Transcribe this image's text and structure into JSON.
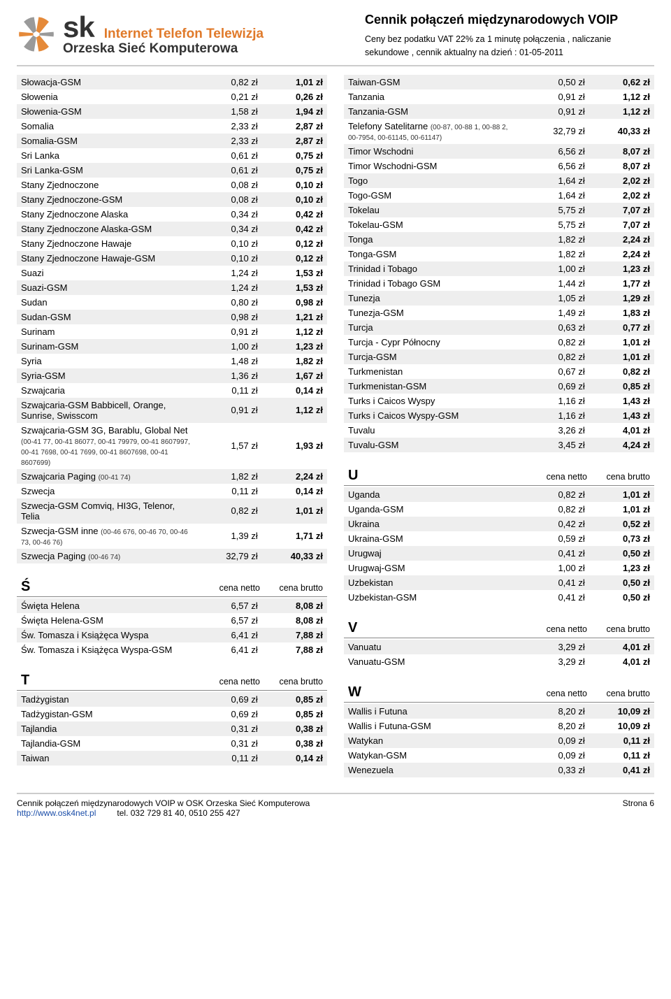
{
  "header": {
    "brand_sk": "sk",
    "brand_tag1": "Internet  Telefon  Telewizja",
    "brand_tag2": "Orzeska Sieć Komputerowa",
    "title": "Cennik połączeń międzynarodowych VOIP",
    "subtitle": "Ceny bez podatku VAT 22% za 1 minutę  połączenia , naliczanie sekundowe , cennik aktualny na dzień : 01-05-2011",
    "logo_orange": "#e58a3a",
    "logo_grey": "#9a9a9a"
  },
  "labels": {
    "cena_netto": "cena netto",
    "cena_brutto": "cena brutto"
  },
  "left_main": [
    {
      "name": "Słowacja-GSM",
      "net": "0,82 zł",
      "gross": "1,01 zł"
    },
    {
      "name": "Słowenia",
      "net": "0,21 zł",
      "gross": "0,26 zł"
    },
    {
      "name": "Słowenia-GSM",
      "net": "1,58 zł",
      "gross": "1,94 zł"
    },
    {
      "name": "Somalia",
      "net": "2,33 zł",
      "gross": "2,87 zł"
    },
    {
      "name": "Somalia-GSM",
      "net": "2,33 zł",
      "gross": "2,87 zł"
    },
    {
      "name": "Sri Lanka",
      "net": "0,61 zł",
      "gross": "0,75 zł"
    },
    {
      "name": "Sri Lanka-GSM",
      "net": "0,61 zł",
      "gross": "0,75 zł"
    },
    {
      "name": "Stany Zjednoczone",
      "net": "0,08 zł",
      "gross": "0,10 zł"
    },
    {
      "name": "Stany Zjednoczone-GSM",
      "net": "0,08 zł",
      "gross": "0,10 zł"
    },
    {
      "name": "Stany Zjednoczone Alaska",
      "net": "0,34 zł",
      "gross": "0,42 zł"
    },
    {
      "name": "Stany Zjednoczone Alaska-GSM",
      "net": "0,34 zł",
      "gross": "0,42 zł"
    },
    {
      "name": "Stany Zjednoczone Hawaje",
      "net": "0,10 zł",
      "gross": "0,12 zł"
    },
    {
      "name": "Stany Zjednoczone Hawaje-GSM",
      "net": "0,10 zł",
      "gross": "0,12 zł"
    },
    {
      "name": "Suazi",
      "net": "1,24 zł",
      "gross": "1,53 zł"
    },
    {
      "name": "Suazi-GSM",
      "net": "1,24 zł",
      "gross": "1,53 zł"
    },
    {
      "name": "Sudan",
      "net": "0,80 zł",
      "gross": "0,98 zł"
    },
    {
      "name": "Sudan-GSM",
      "net": "0,98 zł",
      "gross": "1,21 zł"
    },
    {
      "name": "Surinam",
      "net": "0,91 zł",
      "gross": "1,12 zł"
    },
    {
      "name": "Surinam-GSM",
      "net": "1,00 zł",
      "gross": "1,23 zł"
    },
    {
      "name": "Syria",
      "net": "1,48 zł",
      "gross": "1,82 zł"
    },
    {
      "name": "Syria-GSM",
      "net": "1,36 zł",
      "gross": "1,67 zł"
    },
    {
      "name": "Szwajcaria",
      "net": "0,11 zł",
      "gross": "0,14 zł"
    },
    {
      "name": "Szwajcaria-GSM Babbicell, Orange, Sunrise, Swisscom",
      "net": "0,91 zł",
      "gross": "1,12 zł"
    },
    {
      "name": "Szwajcaria-GSM 3G, Barablu, Global Net",
      "note": "(00-41 77, 00-41 86077, 00-41 79979, 00-41 8607997, 00-41 7698, 00-41 7699, 00-41 8607698, 00-41 8607699)",
      "net": "1,57 zł",
      "gross": "1,93 zł"
    },
    {
      "name": "Szwajcaria Paging",
      "note": "(00-41 74)",
      "net": "1,82 zł",
      "gross": "2,24 zł"
    },
    {
      "name": "Szwecja",
      "net": "0,11 zł",
      "gross": "0,14 zł"
    },
    {
      "name": "Szwecja-GSM Comviq, HI3G, Telenor, Telia",
      "net": "0,82 zł",
      "gross": "1,01 zł"
    },
    {
      "name": "Szwecja-GSM inne",
      "note": "(00-46 676, 00-46 70, 00-46 73, 00-46 76)",
      "net": "1,39 zł",
      "gross": "1,71 zł"
    },
    {
      "name": "Szwecja Paging",
      "note": "(00-46 74)",
      "net": "32,79 zł",
      "gross": "40,33 zł"
    }
  ],
  "left_S2": {
    "letter": "Ś",
    "rows": [
      {
        "name": "Święta Helena",
        "net": "6,57 zł",
        "gross": "8,08 zł"
      },
      {
        "name": "Święta Helena-GSM",
        "net": "6,57 zł",
        "gross": "8,08 zł"
      },
      {
        "name": "Św. Tomasza i Książęca Wyspa",
        "net": "6,41 zł",
        "gross": "7,88 zł"
      },
      {
        "name": "Św. Tomasza i Książęca Wyspa-GSM",
        "net": "6,41 zł",
        "gross": "7,88 zł"
      }
    ]
  },
  "left_T": {
    "letter": "T",
    "rows": [
      {
        "name": "Tadżygistan",
        "net": "0,69 zł",
        "gross": "0,85 zł"
      },
      {
        "name": "Tadżygistan-GSM",
        "net": "0,69 zł",
        "gross": "0,85 zł"
      },
      {
        "name": "Tajlandia",
        "net": "0,31 zł",
        "gross": "0,38 zł"
      },
      {
        "name": "Tajlandia-GSM",
        "net": "0,31 zł",
        "gross": "0,38 zł"
      },
      {
        "name": "Taiwan",
        "net": "0,11 zł",
        "gross": "0,14 zł"
      }
    ]
  },
  "right_main": [
    {
      "name": "Taiwan-GSM",
      "net": "0,50 zł",
      "gross": "0,62 zł"
    },
    {
      "name": "Tanzania",
      "net": "0,91 zł",
      "gross": "1,12 zł"
    },
    {
      "name": "Tanzania-GSM",
      "net": "0,91 zł",
      "gross": "1,12 zł"
    },
    {
      "name": "Telefony Satelitarne",
      "note": "(00-87, 00-88 1, 00-88 2, 00-7954, 00-61145, 00-61147)",
      "net": "32,79 zł",
      "gross": "40,33 zł"
    },
    {
      "name": "Timor Wschodni",
      "net": "6,56 zł",
      "gross": "8,07 zł"
    },
    {
      "name": "Timor Wschodni-GSM",
      "net": "6,56 zł",
      "gross": "8,07 zł"
    },
    {
      "name": "Togo",
      "net": "1,64 zł",
      "gross": "2,02 zł"
    },
    {
      "name": "Togo-GSM",
      "net": "1,64 zł",
      "gross": "2,02 zł"
    },
    {
      "name": "Tokelau",
      "net": "5,75 zł",
      "gross": "7,07 zł"
    },
    {
      "name": "Tokelau-GSM",
      "net": "5,75 zł",
      "gross": "7,07 zł"
    },
    {
      "name": "Tonga",
      "net": "1,82 zł",
      "gross": "2,24 zł"
    },
    {
      "name": "Tonga-GSM",
      "net": "1,82 zł",
      "gross": "2,24 zł"
    },
    {
      "name": "Trinidad i Tobago",
      "net": "1,00 zł",
      "gross": "1,23 zł"
    },
    {
      "name": "Trinidad i Tobago GSM",
      "net": "1,44 zł",
      "gross": "1,77 zł"
    },
    {
      "name": "Tunezja",
      "net": "1,05 zł",
      "gross": "1,29 zł"
    },
    {
      "name": "Tunezja-GSM",
      "net": "1,49 zł",
      "gross": "1,83 zł"
    },
    {
      "name": "Turcja",
      "net": "0,63 zł",
      "gross": "0,77 zł"
    },
    {
      "name": "Turcja - Cypr Północny",
      "net": "0,82 zł",
      "gross": "1,01 zł"
    },
    {
      "name": "Turcja-GSM",
      "net": "0,82 zł",
      "gross": "1,01 zł"
    },
    {
      "name": "Turkmenistan",
      "net": "0,67 zł",
      "gross": "0,82 zł"
    },
    {
      "name": "Turkmenistan-GSM",
      "net": "0,69 zł",
      "gross": "0,85 zł"
    },
    {
      "name": "Turks i Caicos Wyspy",
      "net": "1,16 zł",
      "gross": "1,43 zł"
    },
    {
      "name": "Turks i Caicos Wyspy-GSM",
      "net": "1,16 zł",
      "gross": "1,43 zł"
    },
    {
      "name": "Tuvalu",
      "net": "3,26 zł",
      "gross": "4,01 zł"
    },
    {
      "name": "Tuvalu-GSM",
      "net": "3,45 zł",
      "gross": "4,24 zł"
    }
  ],
  "right_U": {
    "letter": "U",
    "rows": [
      {
        "name": "Uganda",
        "net": "0,82 zł",
        "gross": "1,01 zł"
      },
      {
        "name": "Uganda-GSM",
        "net": "0,82 zł",
        "gross": "1,01 zł"
      },
      {
        "name": "Ukraina",
        "net": "0,42 zł",
        "gross": "0,52 zł"
      },
      {
        "name": "Ukraina-GSM",
        "net": "0,59 zł",
        "gross": "0,73 zł"
      },
      {
        "name": "Urugwaj",
        "net": "0,41 zł",
        "gross": "0,50 zł"
      },
      {
        "name": "Urugwaj-GSM",
        "net": "1,00 zł",
        "gross": "1,23 zł"
      },
      {
        "name": "Uzbekistan",
        "net": "0,41 zł",
        "gross": "0,50 zł"
      },
      {
        "name": "Uzbekistan-GSM",
        "net": "0,41 zł",
        "gross": "0,50 zł"
      }
    ]
  },
  "right_V": {
    "letter": "V",
    "rows": [
      {
        "name": "Vanuatu",
        "net": "3,29 zł",
        "gross": "4,01 zł"
      },
      {
        "name": "Vanuatu-GSM",
        "net": "3,29 zł",
        "gross": "4,01 zł"
      }
    ]
  },
  "right_W": {
    "letter": "W",
    "rows": [
      {
        "name": "Wallis i Futuna",
        "net": "8,20 zł",
        "gross": "10,09 zł"
      },
      {
        "name": "Wallis i Futuna-GSM",
        "net": "8,20 zł",
        "gross": "10,09 zł"
      },
      {
        "name": "Watykan",
        "net": "0,09 zł",
        "gross": "0,11 zł"
      },
      {
        "name": "Watykan-GSM",
        "net": "0,09 zł",
        "gross": "0,11 zł"
      },
      {
        "name": "Wenezuela",
        "net": "0,33 zł",
        "gross": "0,41 zł"
      }
    ]
  },
  "footer": {
    "line1": "Cennik połączeń międzynarodowych  VOIP w OSK Orzeska Sieć Komputerowa",
    "url": "http://www.osk4net.pl",
    "tel": "tel. 032 729 81 40, 0510 255 427",
    "page": "Strona 6"
  }
}
